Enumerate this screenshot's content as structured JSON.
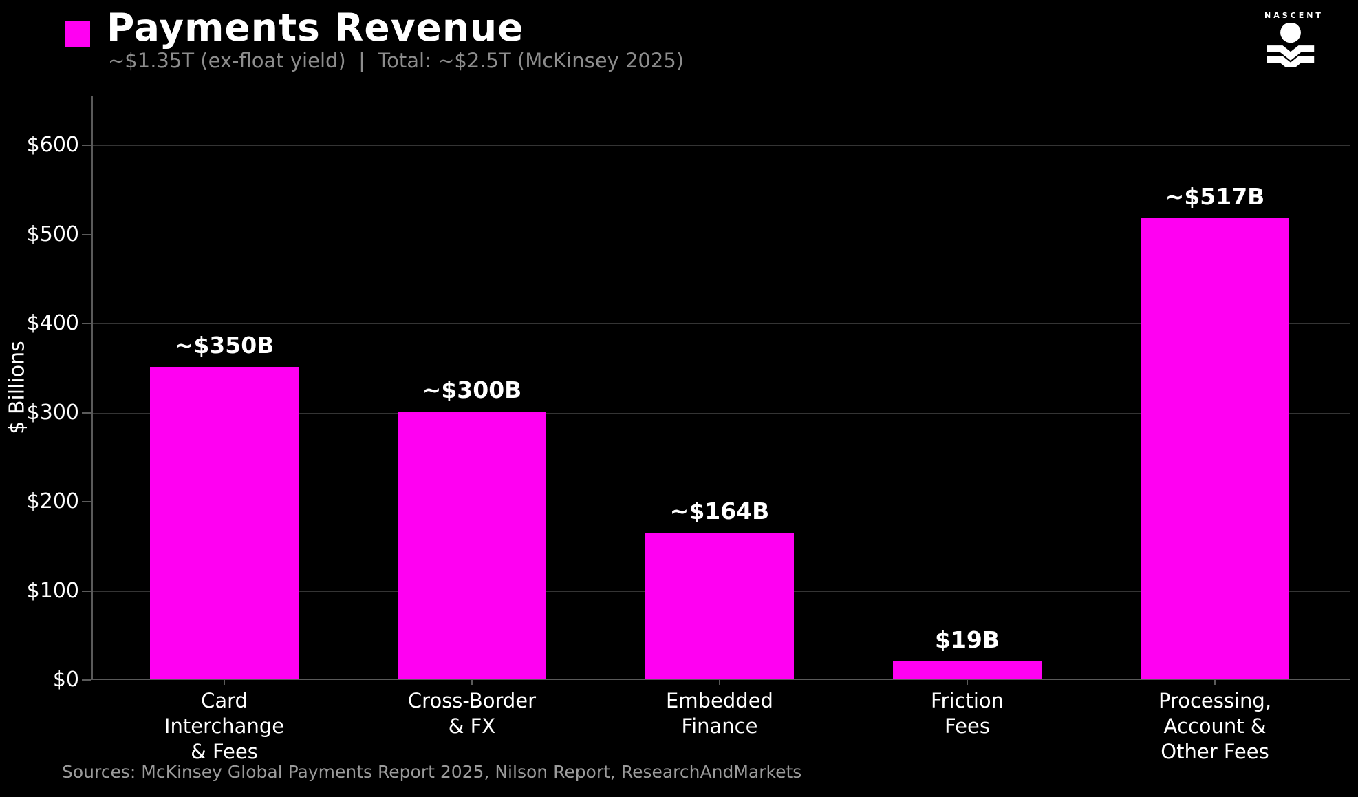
{
  "header": {
    "title": "Payments Revenue",
    "subtitle": "~$1.35T (ex-float yield)  |  Total: ~$2.5T (McKinsey 2025)"
  },
  "logo": {
    "brand": "NASCENT"
  },
  "footer": {
    "sources": "Sources: McKinsey Global Payments Report 2025, Nilson Report, ResearchAndMarkets"
  },
  "colors": {
    "accent": "#ff00f2",
    "background": "#000000",
    "grid": "#343434",
    "spine": "#5a5a5a",
    "text": "#ffffff",
    "muted": "#8d8d8d"
  },
  "chart_data": {
    "type": "bar",
    "title": "Payments Revenue",
    "subtitle": "~$1.35T (ex-float yield)  |  Total: ~$2.5T (McKinsey 2025)",
    "categories": [
      [
        "Card",
        "Interchange",
        "& Fees"
      ],
      [
        "Cross-Border",
        "& FX"
      ],
      [
        "Embedded",
        "Finance"
      ],
      [
        "Friction",
        "Fees"
      ],
      [
        "Processing,",
        "Account &",
        "Other Fees"
      ]
    ],
    "values": [
      350,
      300,
      164,
      19,
      517
    ],
    "bar_labels": [
      "~$350B",
      "~$300B",
      "~$164B",
      "$19B",
      "~$517B"
    ],
    "xlabel": "",
    "ylabel": "$ Billions",
    "yticks": [
      0,
      100,
      200,
      300,
      400,
      500,
      600
    ],
    "ytick_labels": [
      "$0",
      "$100",
      "$200",
      "$300",
      "$400",
      "$500",
      "$600"
    ],
    "ylim": [
      0,
      655
    ],
    "grid": "horizontal",
    "legend": "none",
    "bar_color": "#ff00f2"
  }
}
